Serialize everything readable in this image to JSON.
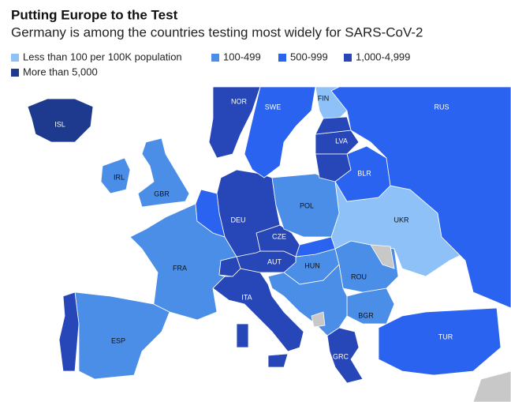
{
  "title": "Putting Europe to the Test",
  "subtitle": "Germany is among the countries testing most widely for SARS-CoV-2",
  "legend": [
    {
      "label": "Less than 100 per 100K population",
      "color": "#8dc1f8"
    },
    {
      "label": "100-499",
      "color": "#4b8ee8"
    },
    {
      "label": "500-999",
      "color": "#2a63f0"
    },
    {
      "label": "1,000-4,999",
      "color": "#2746b8"
    },
    {
      "label": "More than 5,000",
      "color": "#1d3a8e"
    }
  ],
  "regions": [
    {
      "label": "RUS",
      "legend": 2
    },
    {
      "label": "FIN",
      "legend": 0
    },
    {
      "label": "NOR",
      "legend": 3
    },
    {
      "label": "SWE",
      "legend": 2
    },
    {
      "label": "ISL",
      "legend": 4
    },
    {
      "label": "IRL",
      "legend": 1
    },
    {
      "label": "GBR",
      "legend": 1
    },
    {
      "label": "LVA",
      "legend": 3
    },
    {
      "label": "BLR",
      "legend": 2
    },
    {
      "label": "POL",
      "legend": 1
    },
    {
      "label": "DEU",
      "legend": 3
    },
    {
      "label": "FRA",
      "legend": 1
    },
    {
      "label": "CZE",
      "legend": 3
    },
    {
      "label": "AUT",
      "legend": 3
    },
    {
      "label": "HUN",
      "legend": 1
    },
    {
      "label": "UKR",
      "legend": 0
    },
    {
      "label": "ROU",
      "legend": 1
    },
    {
      "label": "BGR",
      "legend": 1
    },
    {
      "label": "ITA",
      "legend": 3
    },
    {
      "label": "GRC",
      "legend": 3
    },
    {
      "label": "TUR",
      "legend": 2
    },
    {
      "label": "ESP",
      "legend": 1
    }
  ]
}
